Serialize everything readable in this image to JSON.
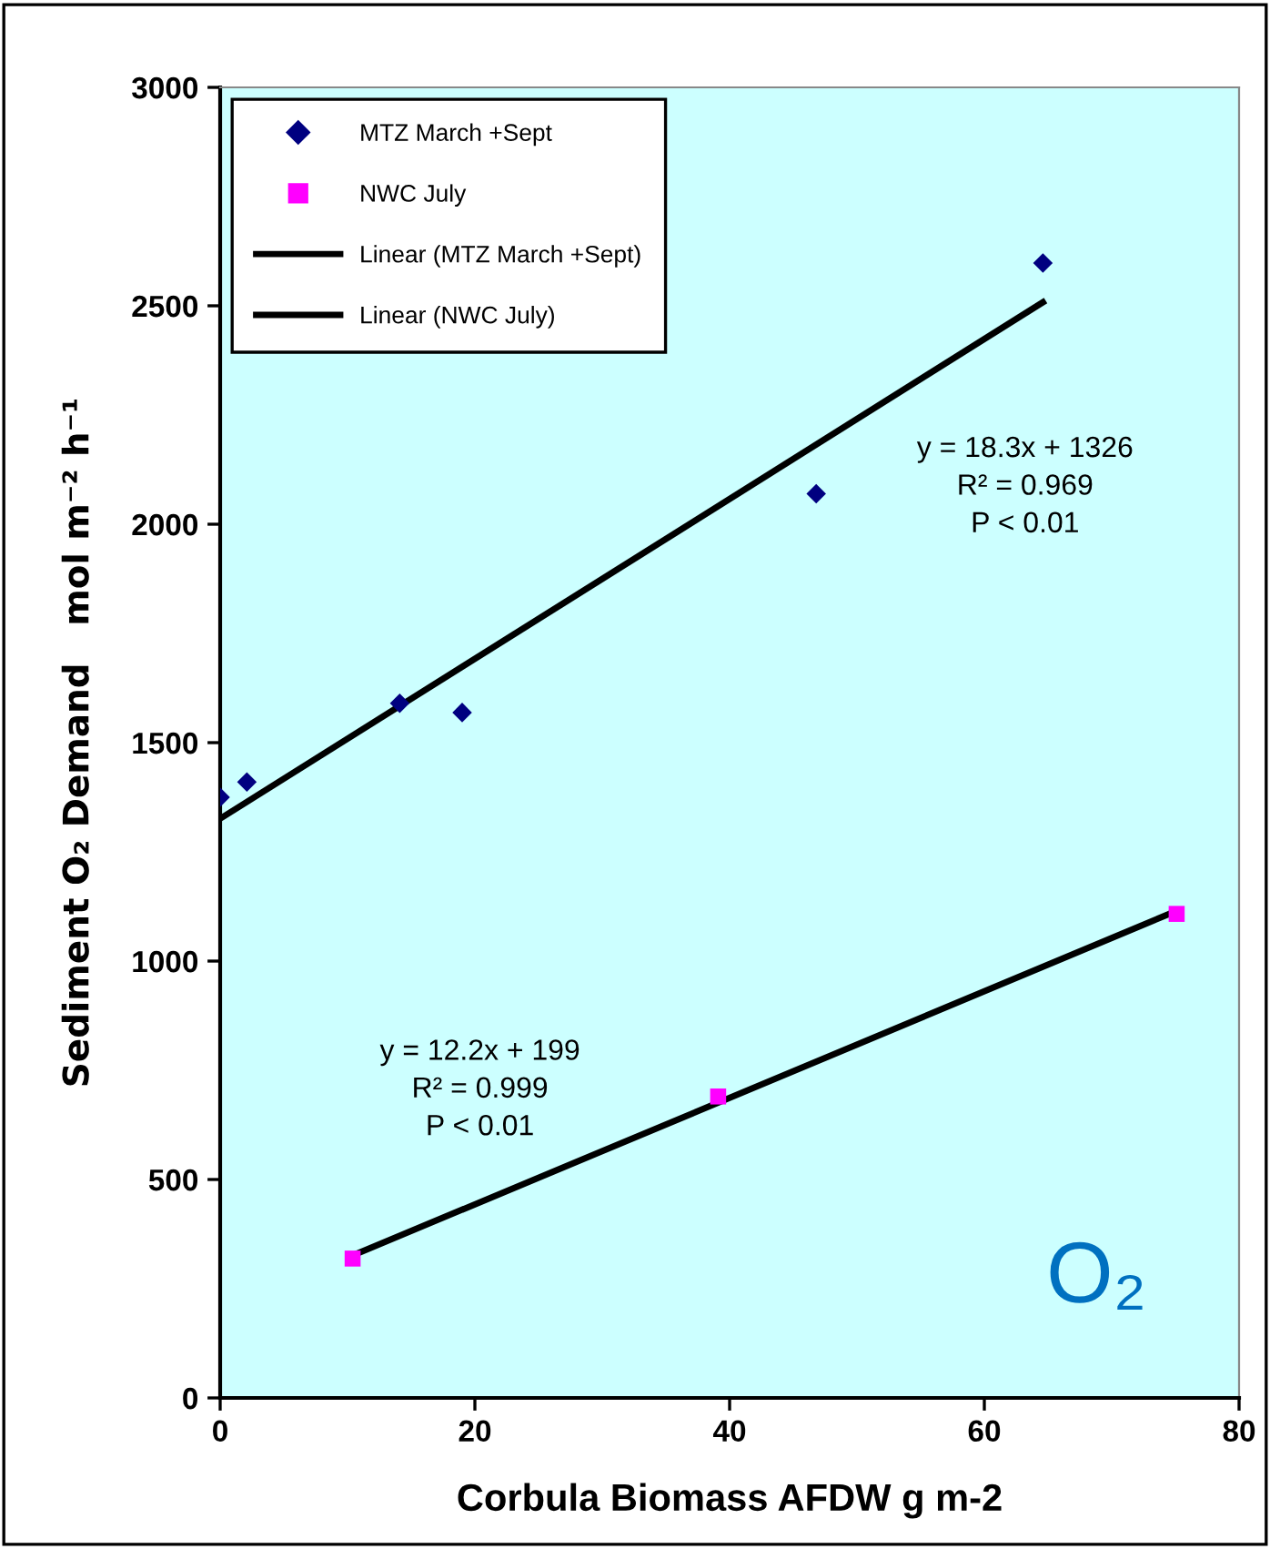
{
  "chart_data": {
    "type": "scatter",
    "xlabel": "Corbula Biomass AFDW g m-2",
    "ylabel": "Sediment O₂ Demand   mol m⁻² h⁻¹",
    "series": [
      {
        "name": "MTZ March +Sept",
        "color": "#000080",
        "marker": "diamond",
        "x": [
          0,
          2.1,
          14.1,
          19.0,
          46.8,
          64.6
        ],
        "values": [
          1375,
          1410,
          1590,
          1569,
          2070,
          2598
        ]
      },
      {
        "name": "NWC July",
        "color": "#ff00ff",
        "marker": "square",
        "x": [
          10.4,
          39.1,
          75.1
        ],
        "values": [
          319,
          690,
          1108
        ]
      },
      {
        "name": "Linear (MTZ March +Sept)",
        "type": "line",
        "color": "#000000",
        "x": [
          0,
          64.6
        ],
        "values": [
          1326,
          2508
        ]
      },
      {
        "name": "Linear (NWC July)",
        "type": "line",
        "color": "#000000",
        "x": [
          10.4,
          75.1
        ],
        "values": [
          326,
          1115
        ]
      }
    ],
    "xlim": [
      0,
      80
    ],
    "xticks": [
      0,
      20,
      40,
      60,
      80
    ],
    "ylim": [
      0,
      3000
    ],
    "yticks": [
      0,
      500,
      1000,
      1500,
      2000,
      2500,
      3000
    ],
    "grid": false,
    "legend": "top left",
    "annotations": [
      "y = 18.3x + 1326\nR² = 0.969\nP < 0.01",
      "y = 12.2x + 199\nR² = 0.999\nP < 0.01",
      "O₂"
    ]
  }
}
